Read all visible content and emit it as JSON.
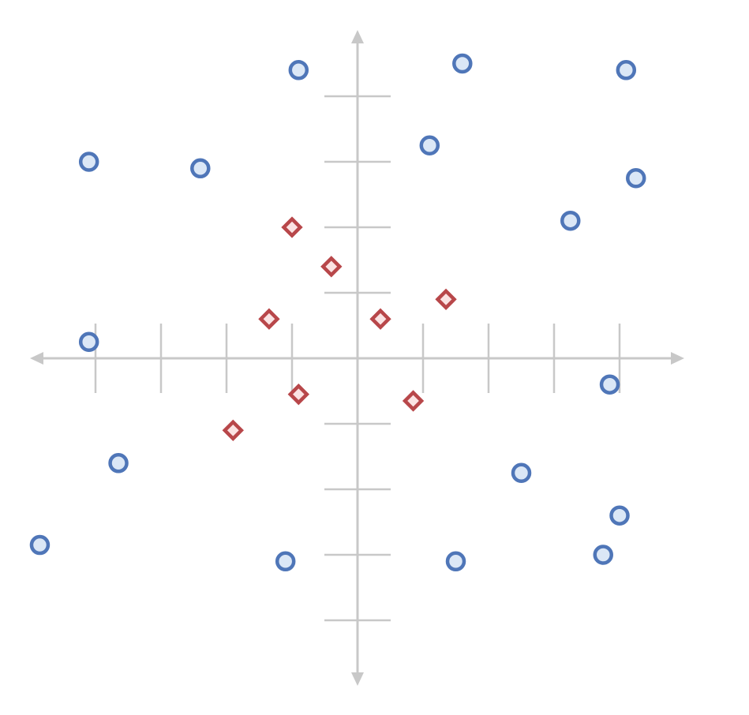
{
  "chart_data": {
    "type": "scatter",
    "title": "",
    "xlabel": "",
    "ylabel": "",
    "xlim": [
      -5,
      5
    ],
    "ylim": [
      -5,
      5
    ],
    "grid": false,
    "axis_color": "#c8c8c8",
    "series": [
      {
        "color": "#4f76b8",
        "fill": "#dbe7f6",
        "marker": "circle",
        "points": [
          [
            -0.9,
            4.4
          ],
          [
            1.6,
            4.5
          ],
          [
            4.1,
            4.4
          ],
          [
            -4.1,
            3.0
          ],
          [
            -2.4,
            2.9
          ],
          [
            1.1,
            3.25
          ],
          [
            4.25,
            2.75
          ],
          [
            3.25,
            2.1
          ],
          [
            -4.1,
            0.25
          ],
          [
            3.85,
            -0.4
          ],
          [
            -3.65,
            -1.6
          ],
          [
            2.5,
            -1.75
          ],
          [
            4.0,
            -2.4
          ],
          [
            -4.85,
            -2.85
          ],
          [
            -1.1,
            -3.1
          ],
          [
            1.5,
            -3.1
          ],
          [
            3.75,
            -3.0
          ]
        ]
      },
      {
        "color": "#b8474a",
        "fill": "#fbe3e3",
        "marker": "diamond",
        "points": [
          [
            -1.0,
            2.0
          ],
          [
            -0.4,
            1.4
          ],
          [
            -1.35,
            0.6
          ],
          [
            0.35,
            0.6
          ],
          [
            1.35,
            0.9
          ],
          [
            -0.9,
            -0.55
          ],
          [
            0.85,
            -0.65
          ],
          [
            -1.9,
            -1.1
          ]
        ]
      }
    ]
  }
}
